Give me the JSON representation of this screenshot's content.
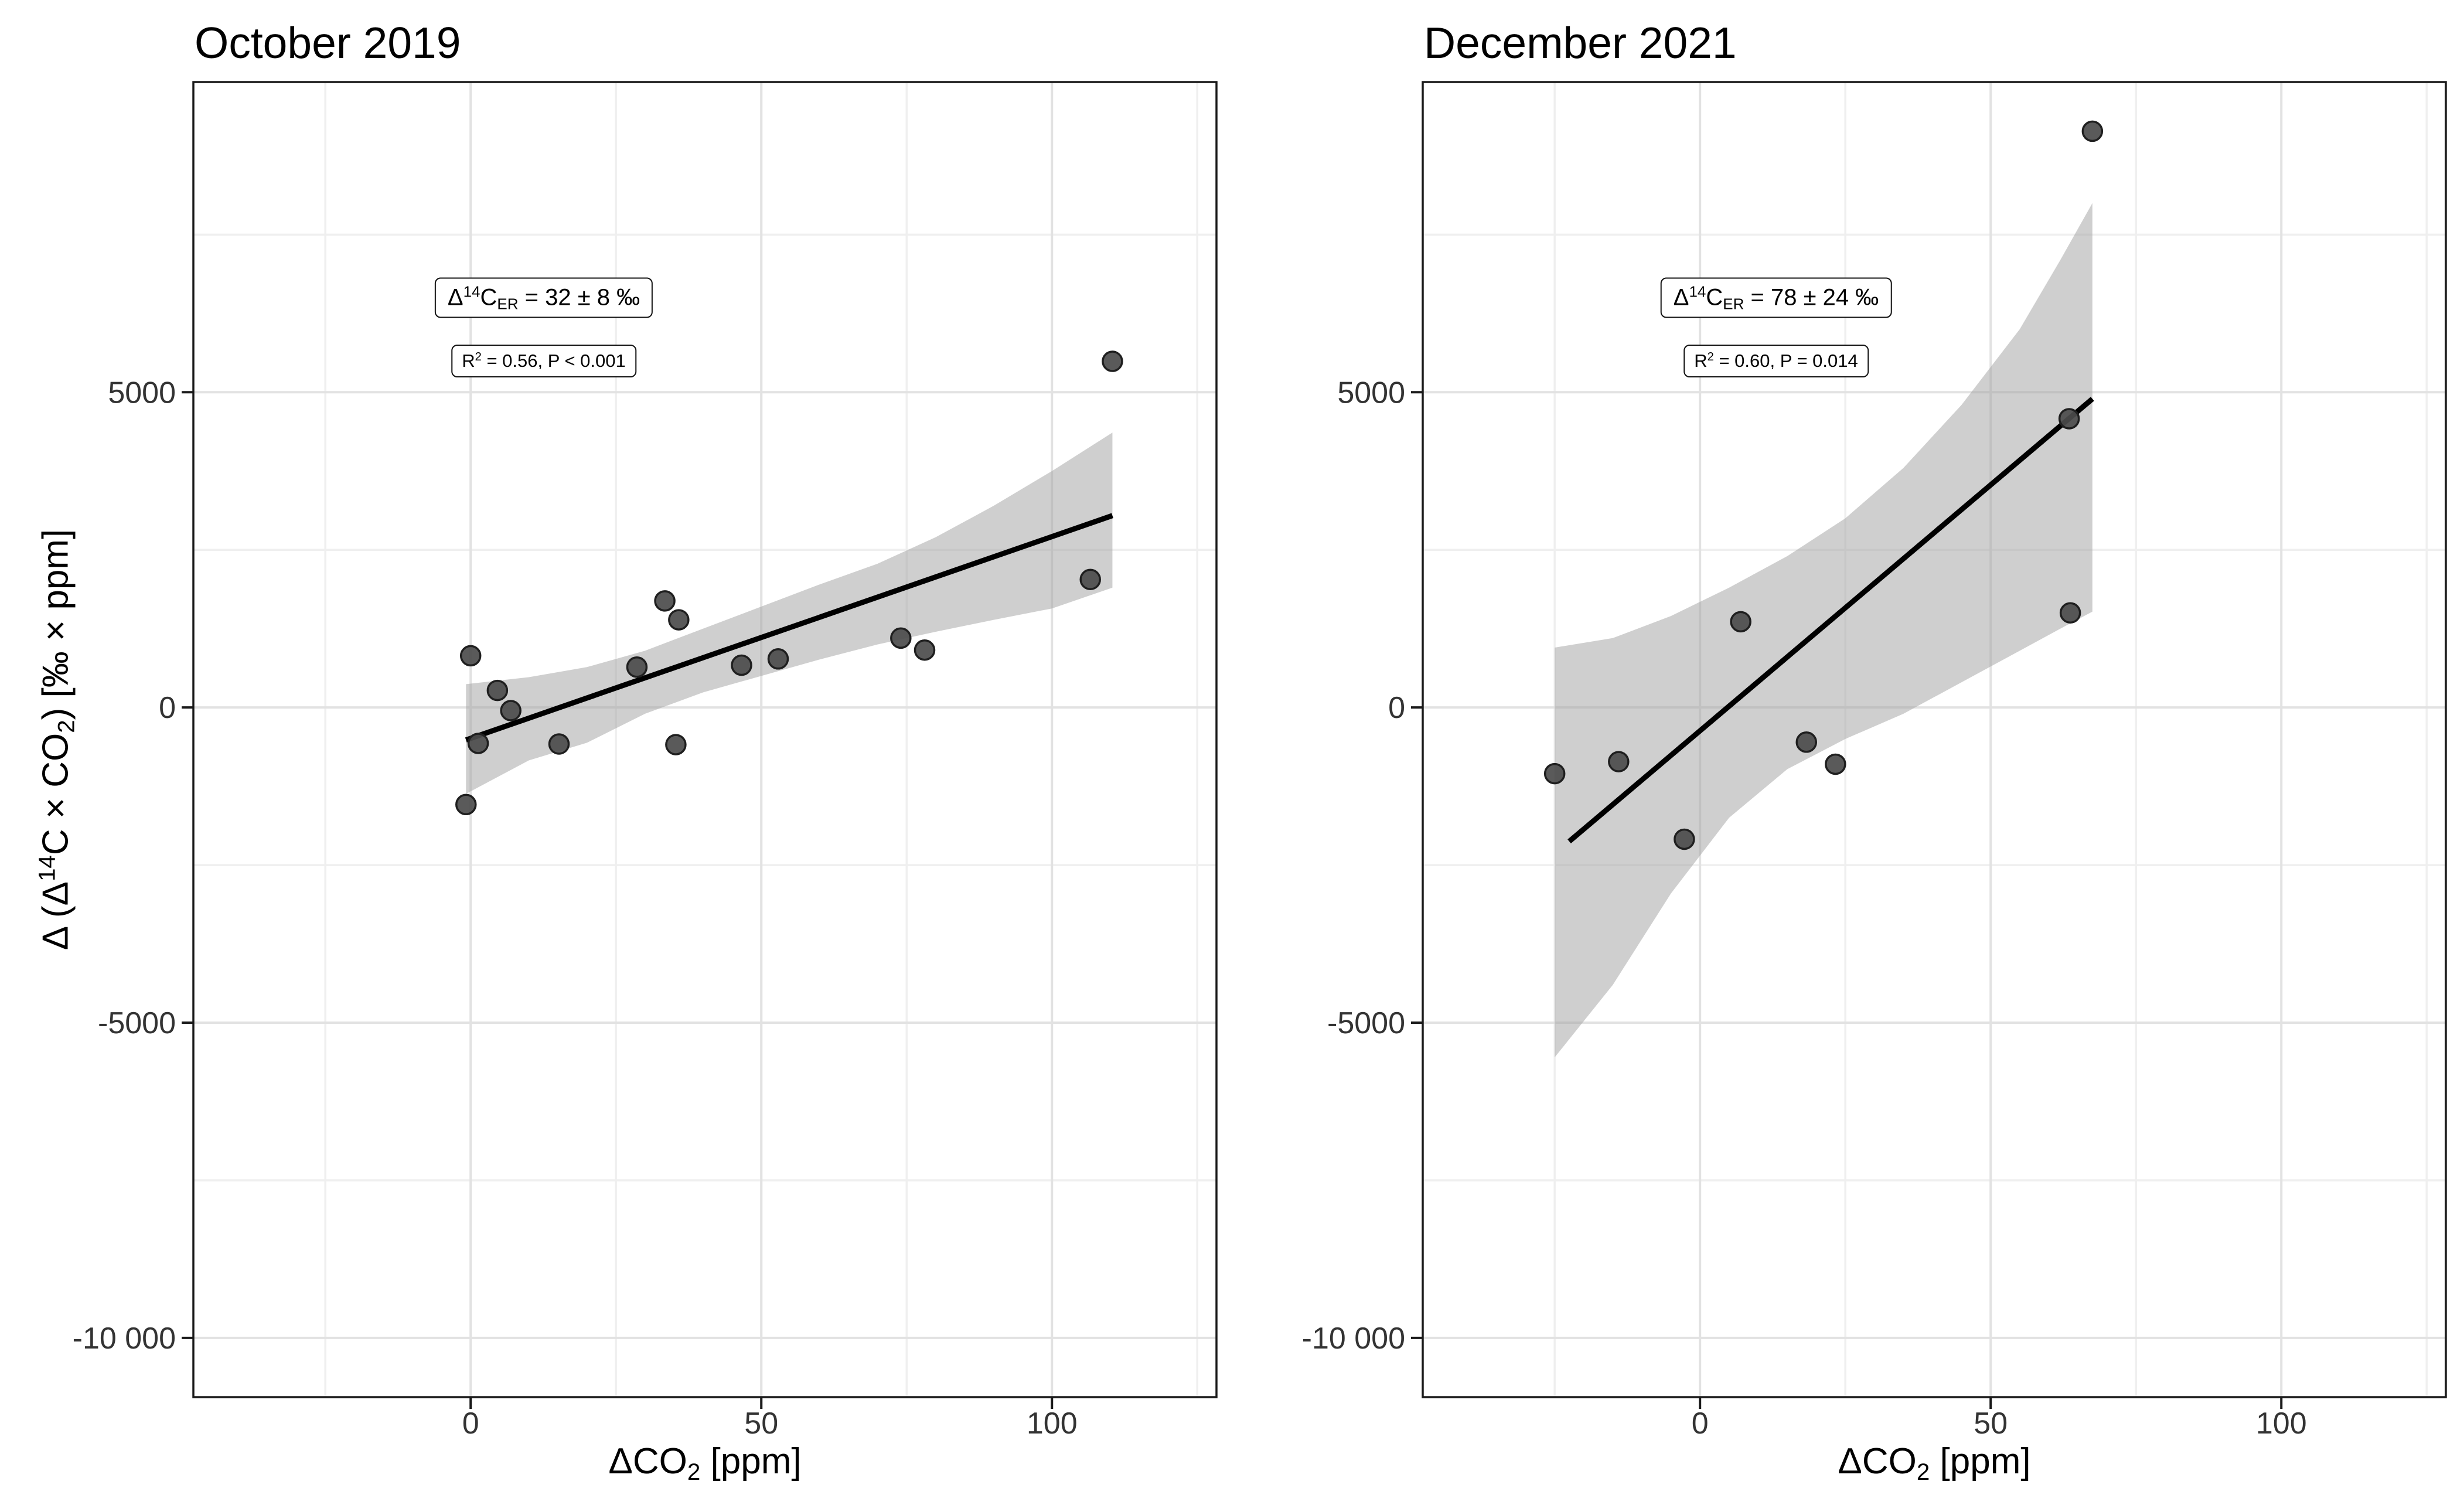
{
  "figure": {
    "y_axis_label": {
      "pre": "Δ (Δ",
      "sup": "14",
      "mid": "C × CO",
      "sub": "2",
      "post": ") [‰ ×  ppm]"
    },
    "x_axis_label": {
      "pre": "ΔCO",
      "sub": "2",
      "post": " [ppm]"
    }
  },
  "panels": [
    {
      "title": "October 2019",
      "stat_box1": {
        "delta": "Δ",
        "sup": "14",
        "c": "C",
        "sub": "ER",
        "rest": " = 32 ± 8 ‰"
      },
      "stat_box2": {
        "r": "R",
        "sup": "2",
        "rest": " = 0.56, P < 0.001"
      }
    },
    {
      "title": "December 2021",
      "stat_box1": {
        "delta": "Δ",
        "sup": "14",
        "c": "C",
        "sub": "ER",
        "rest": " = 78 ± 24 ‰"
      },
      "stat_box2": {
        "r": "R",
        "sup": "2",
        "rest": " = 0.60, P = 0.014"
      }
    }
  ],
  "colors": {
    "grid_major": "#e2e2e2",
    "grid_minor": "#efefef",
    "band": "rgba(160,160,160,0.5)",
    "regression_line": "#000000",
    "point_fill": "#4c4c4c",
    "point_stroke": "#1f1f1f",
    "panel_border": "#1a1a1a",
    "tick_label": "#333333"
  },
  "chart_data": [
    {
      "type": "scatter",
      "title": "October 2019",
      "xlabel": "ΔCO2 [ppm]",
      "ylabel": "Δ (Δ14C × CO2) [‰ × ppm]",
      "xlim": [
        -47.7,
        128.3
      ],
      "ylim": [
        -10940,
        9920
      ],
      "x_ticks": {
        "values": [
          0,
          50,
          100
        ],
        "labels": [
          "0",
          "50",
          "100"
        ]
      },
      "y_ticks": {
        "values": [
          5000,
          0,
          -5000,
          -10000
        ],
        "labels": [
          "5000",
          "0",
          "-5000",
          "-10 000"
        ]
      },
      "x_minor": [
        -25,
        25,
        75,
        125
      ],
      "y_minor": [
        7500,
        2500,
        -2500,
        -7500
      ],
      "grid": true,
      "stats": {
        "slope_permil": "32 ± 8",
        "r2": 0.56,
        "p": "< 0.001"
      },
      "points": [
        [
          0,
          820
        ],
        [
          4.6,
          270
        ],
        [
          6.9,
          -50
        ],
        [
          1.3,
          -570
        ],
        [
          -0.8,
          -1540
        ],
        [
          15.2,
          -580
        ],
        [
          28.6,
          640
        ],
        [
          33.4,
          1690
        ],
        [
          35.8,
          1390
        ],
        [
          35.3,
          -590
        ],
        [
          46.6,
          670
        ],
        [
          52.9,
          770
        ],
        [
          74,
          1100
        ],
        [
          78.1,
          910
        ],
        [
          106.6,
          2030
        ],
        [
          110.4,
          5490
        ]
      ],
      "regression_line": {
        "x": [
          -0.8,
          110.4
        ],
        "y": [
          -516,
          3043
        ]
      },
      "ci_band": {
        "x": [
          -0.8,
          10,
          20,
          30,
          40,
          50,
          60,
          70,
          80,
          90,
          100,
          110.4
        ],
        "top": [
          370,
          480,
          640,
          900,
          1250,
          1600,
          1950,
          2280,
          2700,
          3200,
          3750,
          4360
        ],
        "bottom": [
          -1370,
          -840,
          -560,
          -100,
          240,
          500,
          760,
          1000,
          1200,
          1390,
          1570,
          1900
        ]
      }
    },
    {
      "type": "scatter",
      "title": "December 2021",
      "xlabel": "ΔCO2 [ppm]",
      "ylabel": "Δ (Δ14C × CO2) [‰ × ppm]",
      "xlim": [
        -47.7,
        128.3
      ],
      "ylim": [
        -10940,
        9920
      ],
      "x_ticks": {
        "values": [
          0,
          50,
          100
        ],
        "labels": [
          "0",
          "50",
          "100"
        ]
      },
      "y_ticks": {
        "values": [
          5000,
          0,
          -5000,
          -10000
        ],
        "labels": [
          "5000",
          "0",
          "-5000",
          "-10 000"
        ]
      },
      "x_minor": [
        -25,
        25,
        75,
        125
      ],
      "y_minor": [
        7500,
        2500,
        -2500,
        -7500
      ],
      "grid": true,
      "stats": {
        "slope_permil": "78 ± 24",
        "r2": 0.6,
        "p": "= 0.014"
      },
      "points": [
        [
          -25,
          -1050
        ],
        [
          -14,
          -860
        ],
        [
          -2.7,
          -2090
        ],
        [
          7,
          1360
        ],
        [
          18.3,
          -550
        ],
        [
          23.3,
          -900
        ],
        [
          63.5,
          4580
        ],
        [
          63.7,
          1500
        ],
        [
          67.5,
          9140
        ]
      ],
      "regression_line": {
        "x": [
          -22.5,
          67.5
        ],
        "y": [
          -2125,
          4895
        ]
      },
      "ci_band": {
        "x": [
          -25,
          -15,
          -5,
          5,
          15,
          25,
          35,
          45,
          55,
          62,
          67.5
        ],
        "top": [
          950,
          1100,
          1450,
          1900,
          2400,
          3000,
          3800,
          4800,
          6000,
          7100,
          8000
        ],
        "bottom": [
          -5550,
          -4400,
          -2950,
          -1750,
          -980,
          -500,
          -100,
          400,
          900,
          1250,
          1520
        ]
      }
    }
  ]
}
